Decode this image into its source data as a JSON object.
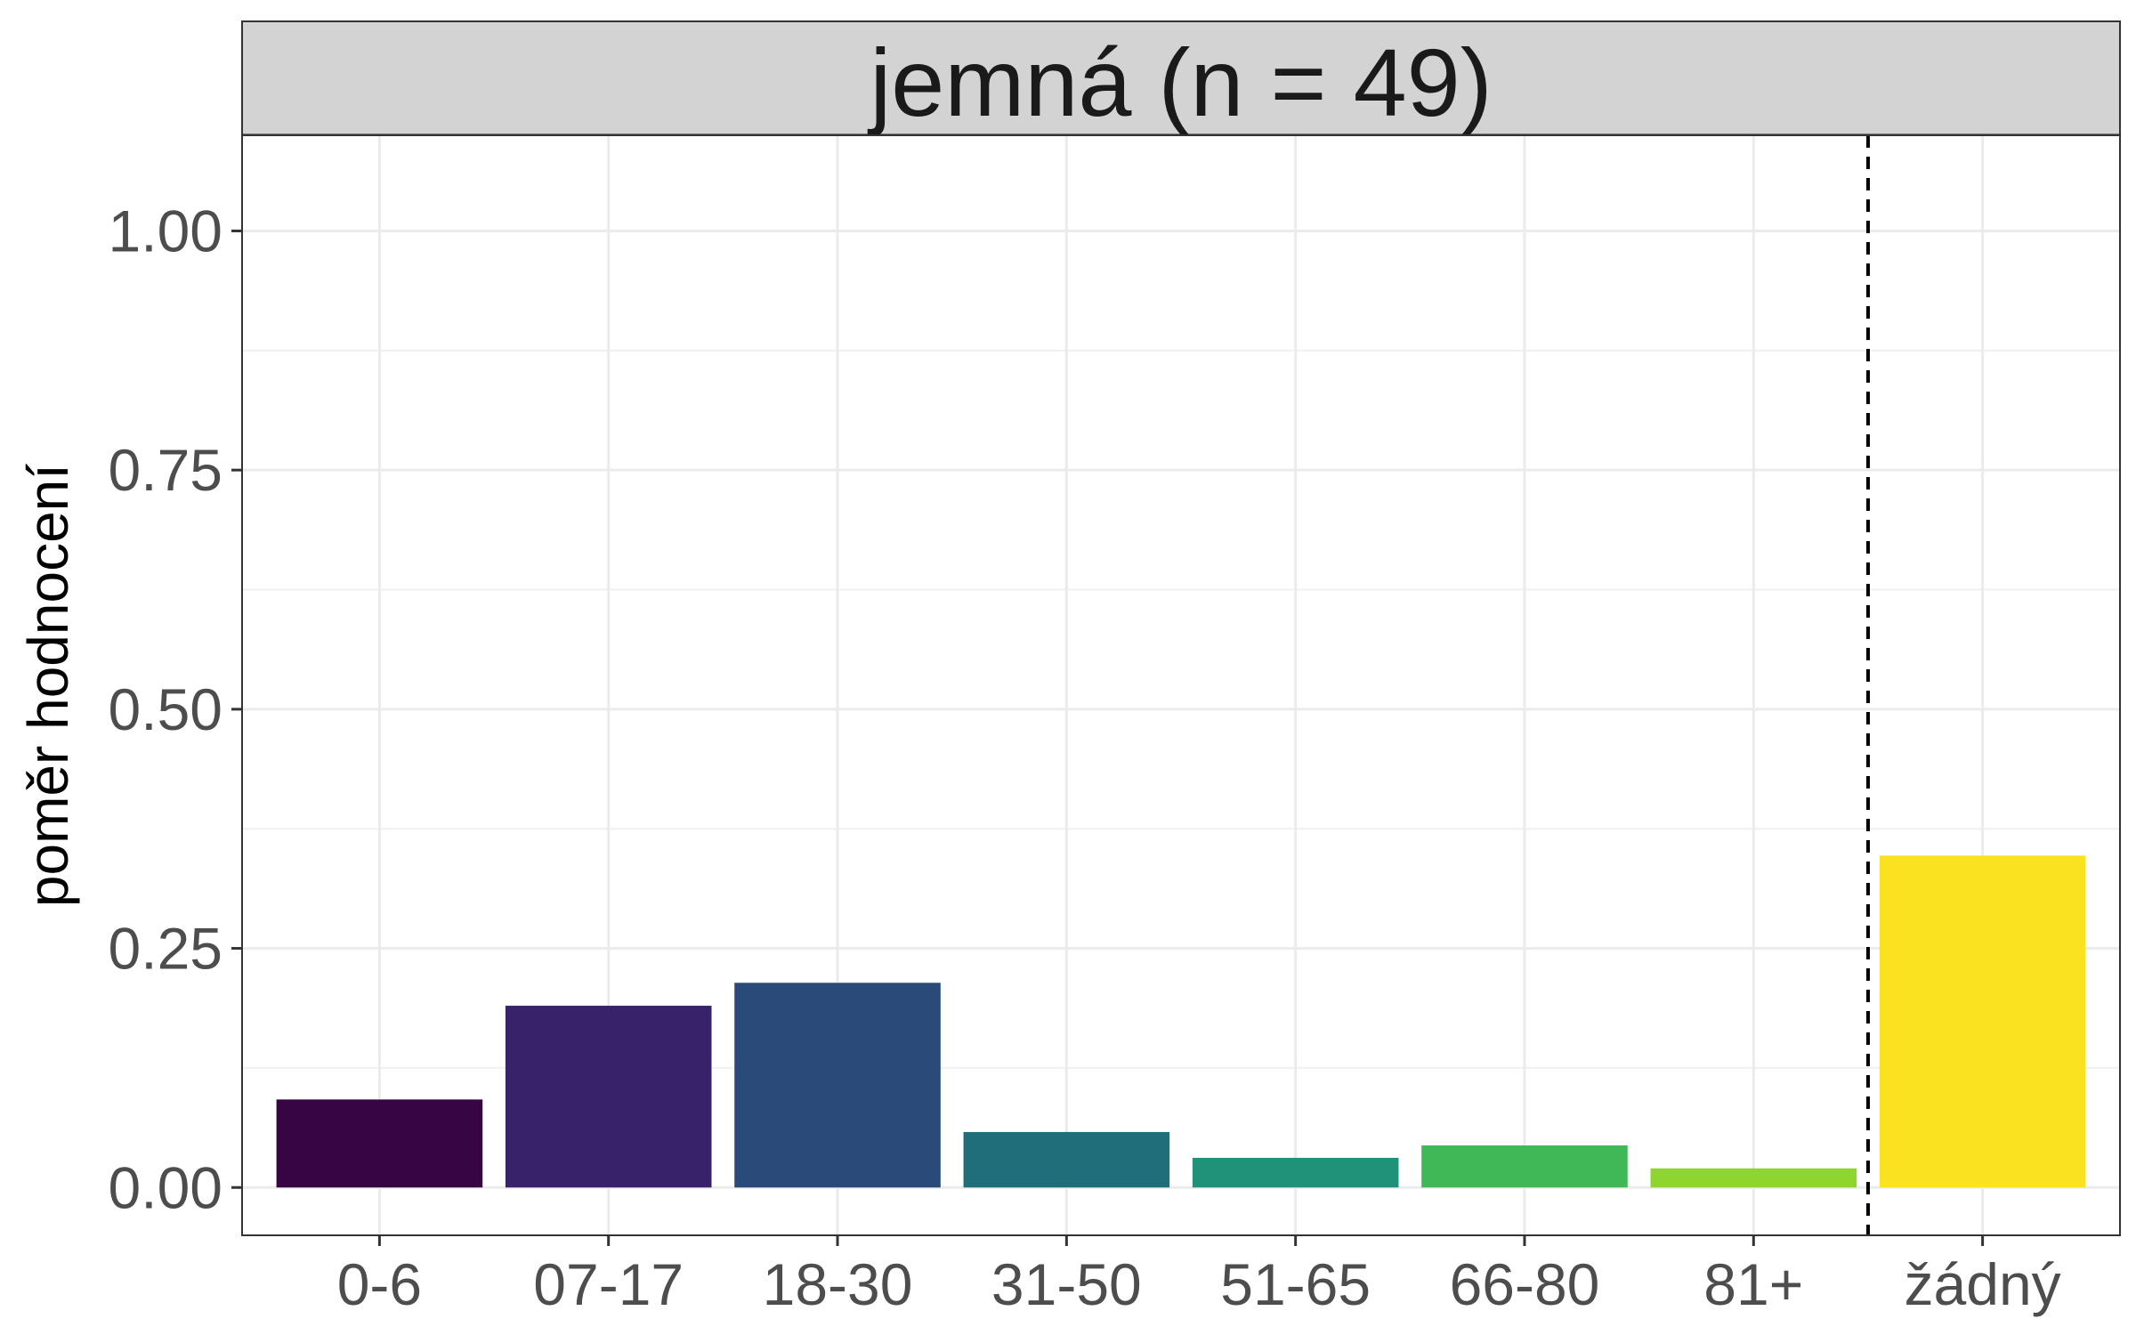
{
  "chart_data": {
    "type": "bar",
    "title": "jemná (n = 49)",
    "xlabel": "",
    "ylabel": "poměr hodnocení",
    "ylim": [
      -0.05,
      1.1
    ],
    "yticks": [
      "0.00",
      "0.25",
      "0.50",
      "0.75",
      "1.00"
    ],
    "ytick_values": [
      0,
      0.25,
      0.5,
      0.75,
      1.0
    ],
    "categories": [
      "0-6",
      "07-17",
      "18-30",
      "31-50",
      "51-65",
      "66-80",
      "81+",
      "žádný"
    ],
    "values": [
      0.092,
      0.19,
      0.214,
      0.058,
      0.031,
      0.044,
      0.02,
      0.347
    ],
    "colors": [
      "#370444",
      "#38226a",
      "#2a4a79",
      "#206e7a",
      "#21927a",
      "#40b857",
      "#8fd52f",
      "#fae220"
    ],
    "grid": true,
    "legend": "none",
    "separator_line": "dashed vertical line between 81+ and žádný"
  }
}
